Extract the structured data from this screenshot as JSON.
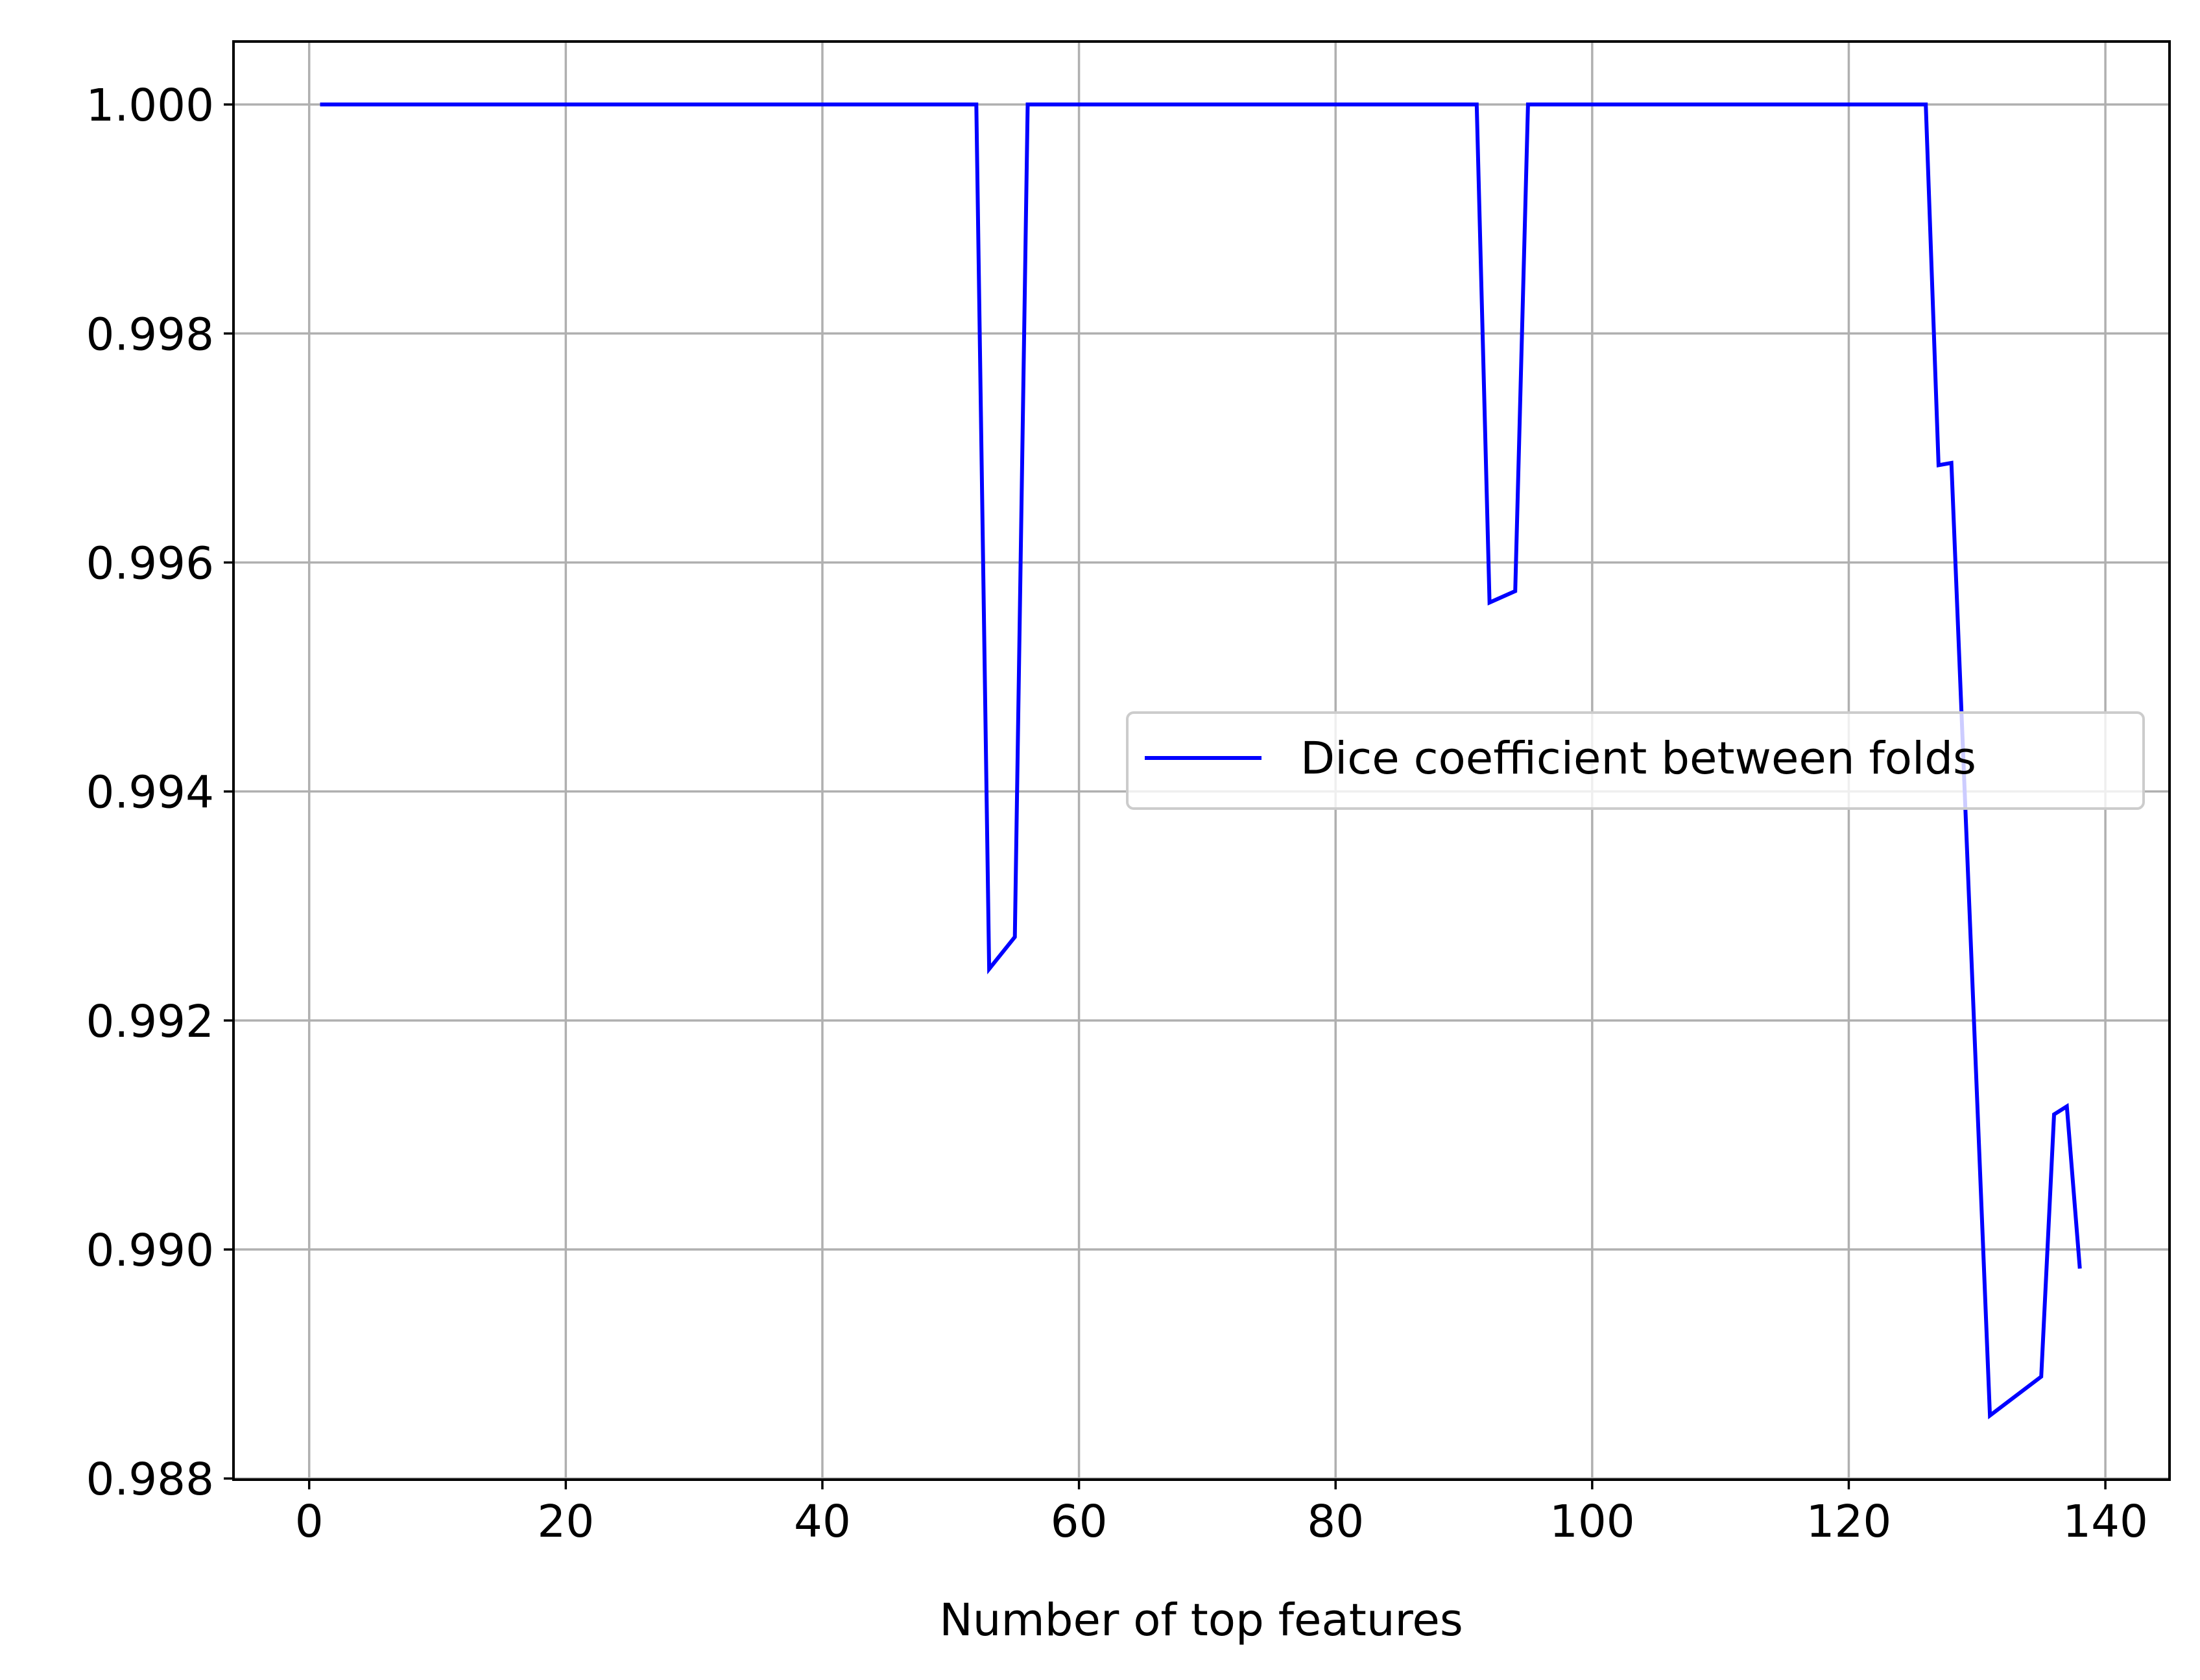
{
  "chart_data": {
    "type": "line",
    "title": "",
    "xlabel": "Number of top features",
    "ylabel": "",
    "xlim": [
      -5.9,
      145.0
    ],
    "ylim": [
      0.98799,
      1.00055
    ],
    "grid": true,
    "legend_position": "center-right",
    "x_ticks": [
      0,
      20,
      40,
      60,
      80,
      100,
      120,
      140
    ],
    "x_tick_labels": [
      "0",
      "20",
      "40",
      "60",
      "80",
      "100",
      "120",
      "140"
    ],
    "y_ticks": [
      0.988,
      0.99,
      0.992,
      0.994,
      0.996,
      0.998,
      1.0
    ],
    "y_tick_labels": [
      "0.988",
      "0.990",
      "0.992",
      "0.994",
      "0.996",
      "0.998",
      "1.000"
    ],
    "series": [
      {
        "name": "Dice coefficient between folds",
        "color": "#0000ff",
        "points": [
          [
            1,
            1.0
          ],
          [
            52,
            1.0
          ],
          [
            53,
            0.99245
          ],
          [
            55,
            0.99273
          ],
          [
            56,
            1.0
          ],
          [
            91,
            1.0
          ],
          [
            92,
            0.99565
          ],
          [
            94,
            0.99575
          ],
          [
            95,
            1.0
          ],
          [
            126,
            1.0
          ],
          [
            127,
            0.99685
          ],
          [
            128,
            0.99687
          ],
          [
            131,
            0.98855
          ],
          [
            135,
            0.98889
          ],
          [
            136,
            0.99118
          ],
          [
            137,
            0.99125
          ],
          [
            138,
            0.98985
          ]
        ]
      }
    ]
  }
}
